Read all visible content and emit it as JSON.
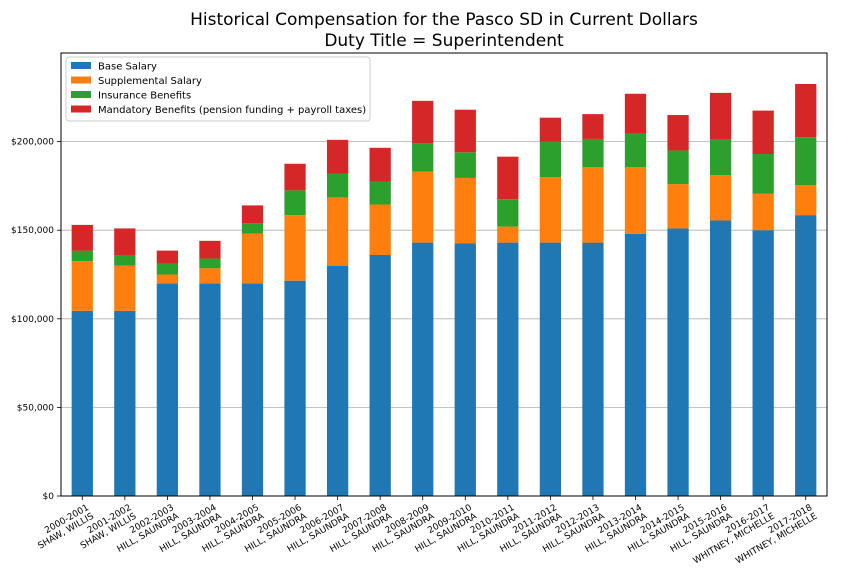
{
  "chart_data": {
    "type": "bar",
    "stacked": true,
    "title": "Historical Compensation for the Pasco SD in Current Dollars",
    "subtitle": "Duty Title = Superintendent",
    "xlabel": "",
    "ylabel": "",
    "ylim": [
      0,
      250000
    ],
    "y_ticks": [
      0,
      50000,
      100000,
      150000,
      200000
    ],
    "y_tick_labels": [
      "$0",
      "$50,000",
      "$100,000",
      "$150,000",
      "$200,000"
    ],
    "grid": "horizontal",
    "legend_position": "top-left",
    "categories": [
      [
        "2000-2001",
        "SHAW, WILLIS"
      ],
      [
        "2001-2002",
        "SHAW, WILLIS"
      ],
      [
        "2002-2003",
        "HILL, SAUNDRA"
      ],
      [
        "2003-2004",
        "HILL, SAUNDRA"
      ],
      [
        "2004-2005",
        "HILL, SAUNDRA"
      ],
      [
        "2005-2006",
        "HILL, SAUNDRA"
      ],
      [
        "2006-2007",
        "HILL, SAUNDRA"
      ],
      [
        "2007-2008",
        "HILL, SAUNDRA"
      ],
      [
        "2008-2009",
        "HILL, SAUNDRA"
      ],
      [
        "2009-2010",
        "HILL, SAUNDRA"
      ],
      [
        "2010-2011",
        "HILL, SAUNDRA"
      ],
      [
        "2011-2012",
        "HILL, SAUNDRA"
      ],
      [
        "2012-2013",
        "HILL, SAUNDRA"
      ],
      [
        "2013-2014",
        "HILL, SAUNDRA"
      ],
      [
        "2014-2015",
        "HILL, SAUNDRA"
      ],
      [
        "2015-2016",
        "HILL, SAUNDRA"
      ],
      [
        "2016-2017",
        "WHITNEY, MICHELLE"
      ],
      [
        "2017-2018",
        "WHITNEY, MICHELLE"
      ]
    ],
    "series": [
      {
        "name": "Base Salary",
        "color": "#1f77b4",
        "values": [
          104500,
          104500,
          120000,
          120000,
          120000,
          121500,
          130000,
          136000,
          143000,
          142500,
          143000,
          143000,
          143000,
          148000,
          151000,
          155500,
          150000,
          158500
        ]
      },
      {
        "name": "Supplemental Salary",
        "color": "#ff7f0e",
        "values": [
          28000,
          25500,
          5000,
          8500,
          28000,
          37000,
          38500,
          28500,
          40000,
          37000,
          9000,
          37000,
          42500,
          37500,
          25000,
          25500,
          20500,
          17000
        ]
      },
      {
        "name": "Insurance Benefits",
        "color": "#2ca02c",
        "values": [
          6000,
          6000,
          6000,
          5500,
          6000,
          14000,
          13500,
          13000,
          16000,
          14500,
          15500,
          20000,
          16000,
          19000,
          19000,
          20000,
          22500,
          27000
        ]
      },
      {
        "name": "Mandatory Benefits (pension funding + payroll taxes)",
        "color": "#d62728",
        "values": [
          14500,
          15000,
          7500,
          10000,
          10000,
          15000,
          19000,
          19000,
          24000,
          24000,
          24000,
          13500,
          14000,
          22500,
          20000,
          26500,
          24500,
          30000
        ]
      }
    ]
  }
}
